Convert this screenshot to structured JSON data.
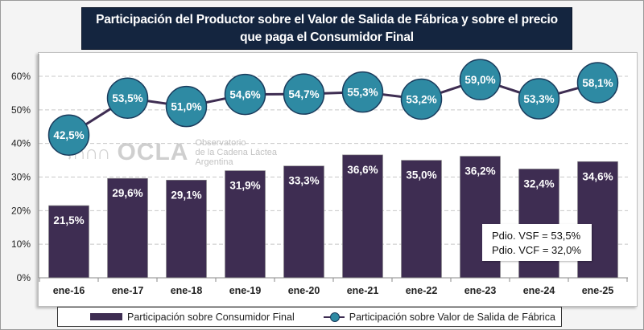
{
  "title": {
    "line1": "Participación del Productor sobre el Valor de Salida de Fábrica y sobre el precio",
    "line2": "que paga el Consumidor Final"
  },
  "watermark": {
    "mark": "⌇∩∩∩",
    "brand": "OCLA",
    "line1": "Observatorio",
    "line2": "de la Cadena Láctea",
    "line3": "Argentina"
  },
  "annotation": {
    "line1": "Pdio. VSF = 53,5%",
    "line2": "Pdio. VCF = 32,0%"
  },
  "legend": {
    "bar_label": "Participación sobre Consumidor Final",
    "line_label": "Participación sobre Valor de Salida de Fábrica"
  },
  "colors": {
    "bar": "#3e2d52",
    "marker": "#2e8aa3",
    "marker_border": "#1a3b5c",
    "line": "#3e2d52",
    "title_bg": "#14253f",
    "grid": "#c8c8c8"
  },
  "chart_data": {
    "type": "bar",
    "title": "Participación del Productor sobre el Valor de Salida de Fábrica y sobre el precio que paga el Consumidor Final",
    "xlabel": "",
    "ylabel": "",
    "ylim": [
      0,
      60
    ],
    "yticks": [
      0,
      10,
      20,
      30,
      40,
      50,
      60
    ],
    "ytick_labels": [
      "0%",
      "10%",
      "20%",
      "30%",
      "40%",
      "50%",
      "60%"
    ],
    "grid": true,
    "legend_position": "bottom",
    "categories": [
      "ene-16",
      "ene-17",
      "ene-18",
      "ene-19",
      "ene-20",
      "ene-21",
      "ene-22",
      "ene-23",
      "ene-24",
      "ene-25"
    ],
    "series": [
      {
        "name": "Participación sobre Consumidor Final",
        "type": "bar",
        "values": [
          21.5,
          29.6,
          29.1,
          31.9,
          33.3,
          36.6,
          35.0,
          36.2,
          32.4,
          34.6
        ],
        "labels": [
          "21,5%",
          "29,6%",
          "29,1%",
          "31,9%",
          "33,3%",
          "36,6%",
          "35,0%",
          "36,2%",
          "32,4%",
          "34,6%"
        ]
      },
      {
        "name": "Participación sobre Valor de Salida de Fábrica",
        "type": "line",
        "values": [
          42.5,
          53.5,
          51.0,
          54.6,
          54.7,
          55.3,
          53.2,
          59.0,
          53.3,
          58.1
        ],
        "labels": [
          "42,5%",
          "53,5%",
          "51,0%",
          "54,6%",
          "54,7%",
          "55,3%",
          "53,2%",
          "59,0%",
          "53,3%",
          "58,1%"
        ]
      }
    ],
    "annotations": [
      "Pdio. VSF = 53,5%",
      "Pdio. VCF = 32,0%"
    ]
  }
}
